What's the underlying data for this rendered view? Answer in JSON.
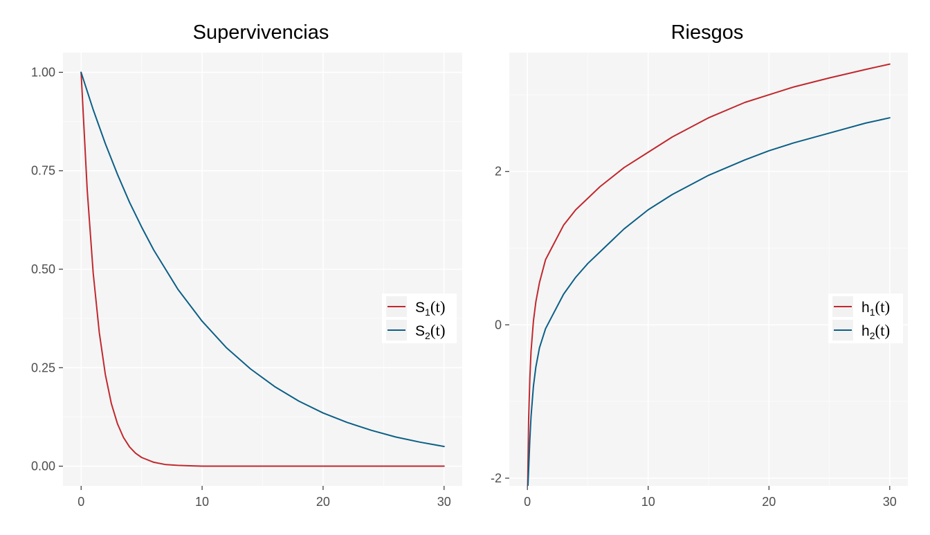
{
  "colors": {
    "panel_bg": "#f5f5f5",
    "grid_major": "#ffffff",
    "grid_minor": "#fbfbfb",
    "tick": "#333333",
    "series_1": "#c1272d",
    "series_2": "#0b5f86"
  },
  "chart_data": [
    {
      "type": "line",
      "title": "Supervivencias",
      "xlabel": "",
      "ylabel": "",
      "xlim": [
        -1.5,
        31.5
      ],
      "ylim": [
        -0.05,
        1.05
      ],
      "x_ticks": [
        0,
        10,
        20,
        30
      ],
      "x_tick_labels": [
        "0",
        "10",
        "20",
        "30"
      ],
      "y_ticks": [
        0,
        0.25,
        0.5,
        0.75,
        1
      ],
      "y_tick_labels": [
        "0.00",
        "0.25",
        "0.50",
        "0.75",
        "1.00"
      ],
      "legend_position": "right",
      "series": [
        {
          "name": "S1(t)",
          "label_main": "S",
          "label_sub": "1",
          "label_paren": "(t)",
          "color_key": "series_1",
          "x": [
            0,
            0.5,
            1,
            1.5,
            2,
            2.5,
            3,
            3.5,
            4,
            4.5,
            5,
            6,
            7,
            8,
            9,
            10,
            12,
            15,
            20,
            25,
            30
          ],
          "y": [
            1,
            0.702,
            0.49,
            0.339,
            0.233,
            0.159,
            0.108,
            0.073,
            0.049,
            0.033,
            0.022,
            0.01,
            0.004,
            0.002,
            0.001,
            0,
            0,
            0,
            0,
            0,
            0
          ]
        },
        {
          "name": "S2(t)",
          "label_main": "S",
          "label_sub": "2",
          "label_paren": "(t)",
          "color_key": "series_2",
          "x": [
            0,
            1,
            2,
            3,
            4,
            5,
            6,
            8,
            10,
            12,
            14,
            16,
            18,
            20,
            22,
            24,
            26,
            28,
            30
          ],
          "y": [
            1,
            0.905,
            0.819,
            0.741,
            0.67,
            0.607,
            0.549,
            0.449,
            0.368,
            0.301,
            0.247,
            0.202,
            0.165,
            0.135,
            0.111,
            0.091,
            0.074,
            0.061,
            0.05
          ]
        }
      ]
    },
    {
      "type": "line",
      "title": "Riesgos",
      "xlabel": "",
      "ylabel": "",
      "xlim": [
        -1.5,
        31.5
      ],
      "ylim": [
        -2.1,
        3.55
      ],
      "x_ticks": [
        0,
        10,
        20,
        30
      ],
      "x_tick_labels": [
        "0",
        "10",
        "20",
        "30"
      ],
      "y_ticks": [
        -2,
        0,
        2
      ],
      "y_tick_labels": [
        "-2",
        "0",
        "2"
      ],
      "legend_position": "right",
      "series": [
        {
          "name": "h1(t)",
          "label_main": "h",
          "label_sub": "1",
          "label_paren": "(t)",
          "color_key": "series_1",
          "x": [
            0.02,
            0.1,
            0.2,
            0.3,
            0.5,
            0.7,
            1,
            1.5,
            2,
            3,
            4,
            5,
            6,
            8,
            10,
            12,
            15,
            18,
            20,
            22,
            25,
            28,
            30
          ],
          "y": [
            -2.15,
            -1.25,
            -0.7,
            -0.35,
            0.05,
            0.3,
            0.55,
            0.85,
            1.0,
            1.3,
            1.5,
            1.65,
            1.8,
            2.05,
            2.25,
            2.45,
            2.7,
            2.9,
            3.0,
            3.1,
            3.22,
            3.33,
            3.4
          ]
        },
        {
          "name": "h2(t)",
          "label_main": "h",
          "label_sub": "2",
          "label_paren": "(t)",
          "color_key": "series_2",
          "x": [
            0.02,
            0.1,
            0.2,
            0.3,
            0.5,
            0.7,
            1,
            1.5,
            2,
            3,
            4,
            5,
            6,
            8,
            10,
            12,
            15,
            18,
            20,
            22,
            25,
            28,
            30
          ],
          "y": [
            -2.2,
            -1.9,
            -1.5,
            -1.2,
            -0.8,
            -0.55,
            -0.3,
            -0.05,
            0.1,
            0.4,
            0.62,
            0.8,
            0.95,
            1.25,
            1.5,
            1.7,
            1.95,
            2.15,
            2.27,
            2.37,
            2.5,
            2.63,
            2.7
          ]
        }
      ]
    }
  ]
}
